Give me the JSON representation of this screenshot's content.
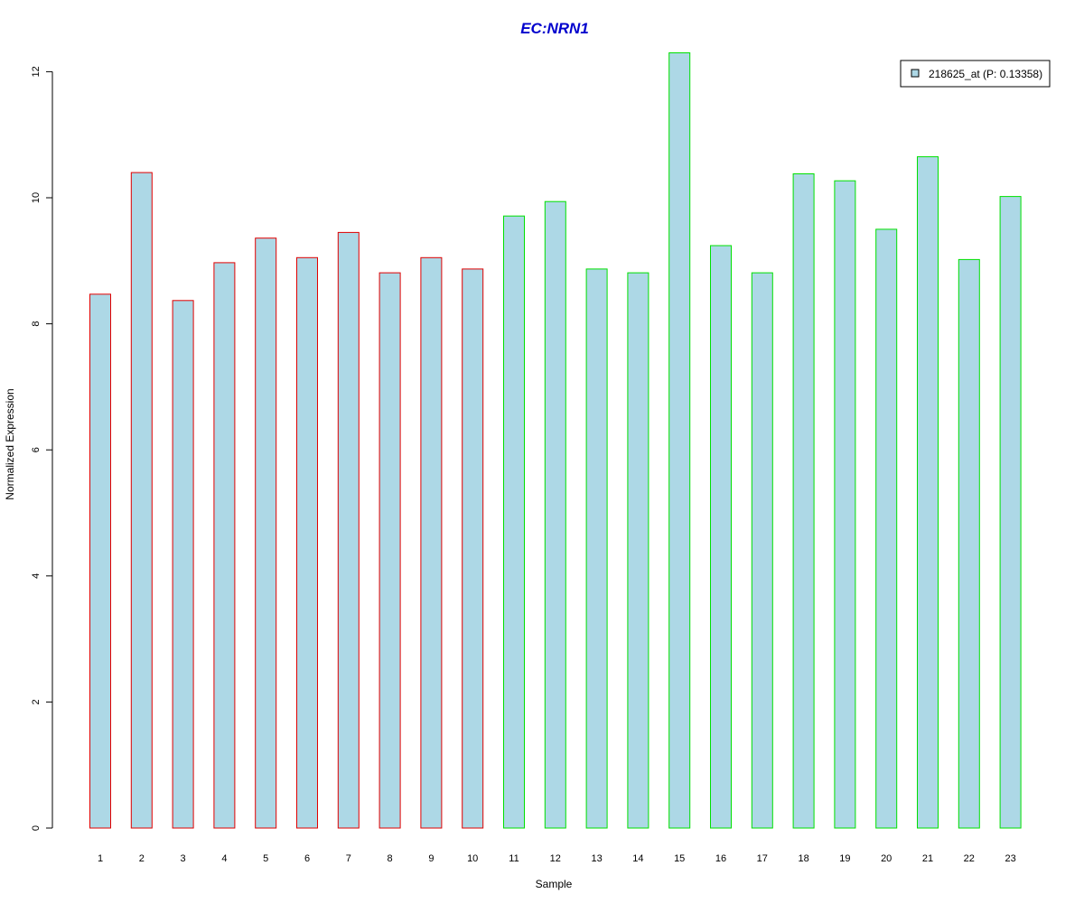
{
  "chart_data": {
    "type": "bar",
    "title": "EC:NRN1",
    "xlabel": "Sample",
    "ylabel": "Normalized Expression",
    "categories": [
      "1",
      "2",
      "3",
      "4",
      "5",
      "6",
      "7",
      "8",
      "9",
      "10",
      "11",
      "12",
      "13",
      "14",
      "15",
      "16",
      "17",
      "18",
      "19",
      "20",
      "21",
      "22",
      "23"
    ],
    "series": [
      {
        "name": "218625_at (P: 0.13358)",
        "values": [
          8.47,
          10.4,
          8.37,
          8.97,
          9.36,
          9.05,
          9.45,
          8.81,
          9.05,
          8.87,
          9.71,
          9.94,
          8.87,
          8.81,
          12.3,
          9.24,
          8.81,
          10.38,
          10.27,
          9.5,
          10.65,
          9.02,
          10.02
        ]
      }
    ],
    "groups": [
      {
        "samples": [
          1,
          2,
          3,
          4,
          5,
          6,
          7,
          8,
          9,
          10
        ],
        "border_color": "#e00000"
      },
      {
        "samples": [
          11,
          12,
          13,
          14,
          15,
          16,
          17,
          18,
          19,
          20,
          21,
          22,
          23
        ],
        "border_color": "#00e000"
      }
    ],
    "ylim": [
      0,
      12.3
    ],
    "yticks": [
      0,
      2,
      4,
      6,
      8,
      10,
      12
    ],
    "grid": false,
    "legend_position": "top-right",
    "colors": {
      "bar_fill": "#add8e6",
      "title": "#0000cd"
    }
  }
}
